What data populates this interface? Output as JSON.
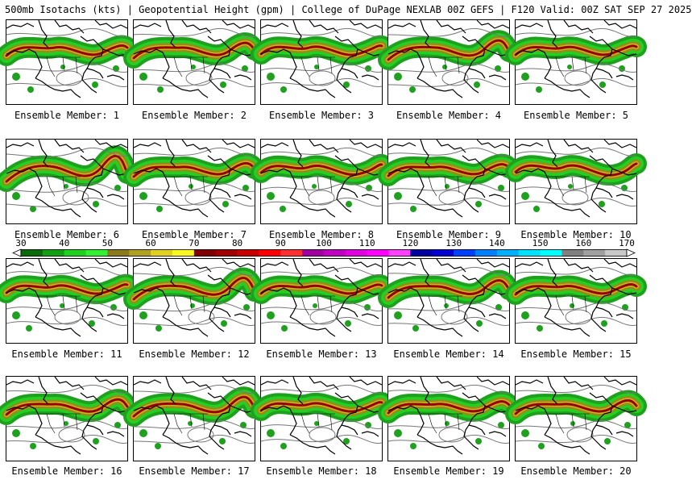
{
  "header": {
    "title": "500mb Isotachs (kts) | Geopotential Height (gpm) | College of DuPage NEXLAB   00Z GEFS | F120 Valid: 00Z SAT SEP 27 2025"
  },
  "colorbar": {
    "labels": [
      "30",
      "40",
      "50",
      "60",
      "70",
      "80",
      "90",
      "100",
      "110",
      "120",
      "130",
      "140",
      "150",
      "160",
      "170"
    ],
    "colors": [
      "#0b6b0b",
      "#12a012",
      "#1ed21e",
      "#32f032",
      "#8a7a1a",
      "#b0a020",
      "#e0d020",
      "#f8f820",
      "#800000",
      "#a00000",
      "#c80000",
      "#ff0000",
      "#ff3030",
      "#a000a0",
      "#c000c0",
      "#e000e0",
      "#ff00ff",
      "#ff40ff",
      "#0000a0",
      "#0000d0",
      "#0040ff",
      "#0080ff",
      "#00b0ff",
      "#00e0ff",
      "#00ffff",
      "#808080",
      "#a0a0a0",
      "#c8c8c8"
    ]
  },
  "members": [
    {
      "label": "Ensemble Member: 1",
      "shift": 0
    },
    {
      "label": "Ensemble Member: 2",
      "shift": 3
    },
    {
      "label": "Ensemble Member: 3",
      "shift": -2
    },
    {
      "label": "Ensemble Member: 4",
      "shift": 5
    },
    {
      "label": "Ensemble Member: 5",
      "shift": -1
    },
    {
      "label": "Ensemble Member: 6",
      "shift": 8
    },
    {
      "label": "Ensemble Member: 7",
      "shift": 2
    },
    {
      "label": "Ensemble Member: 8",
      "shift": -3
    },
    {
      "label": "Ensemble Member: 9",
      "shift": 1
    },
    {
      "label": "Ensemble Member: 10",
      "shift": -4
    },
    {
      "label": "Ensemble Member: 11",
      "shift": -2
    },
    {
      "label": "Ensemble Member: 12",
      "shift": 6
    },
    {
      "label": "Ensemble Member: 13",
      "shift": -1
    },
    {
      "label": "Ensemble Member: 14",
      "shift": 4
    },
    {
      "label": "Ensemble Member: 15",
      "shift": 0
    },
    {
      "label": "Ensemble Member: 16",
      "shift": 3
    },
    {
      "label": "Ensemble Member: 17",
      "shift": 5
    },
    {
      "label": "Ensemble Member: 18",
      "shift": -2
    },
    {
      "label": "Ensemble Member: 19",
      "shift": 1
    },
    {
      "label": "Ensemble Member: 20",
      "shift": 2
    }
  ]
}
